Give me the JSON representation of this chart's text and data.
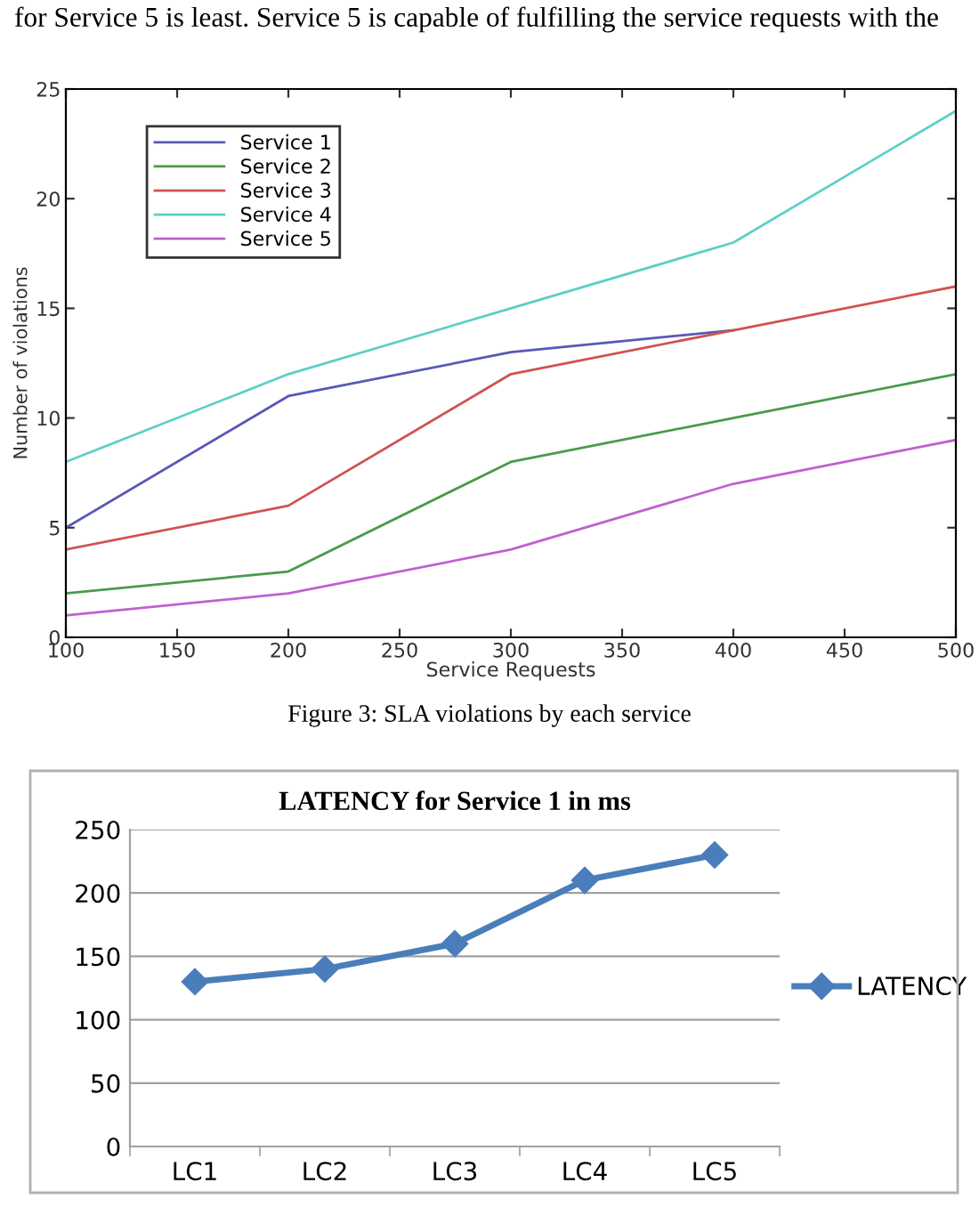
{
  "chart_data": [
    {
      "type": "line",
      "xlabel": "Service Requests",
      "ylabel": "Number of violations",
      "annotations": [
        "for Service 5 is least. Service 5 is capable of fulfilling the service requests with the",
        "Figure 3: SLA violations by each service"
      ],
      "x": [
        100,
        200,
        300,
        400,
        500
      ],
      "series": [
        {
          "name": "Service 1",
          "color": "#5858b8",
          "values": [
            5,
            11,
            13,
            14,
            null
          ]
        },
        {
          "name": "Service 2",
          "color": "#4a9a4a",
          "values": [
            2,
            3,
            8,
            10,
            12
          ]
        },
        {
          "name": "Service 3",
          "color": "#d05252",
          "values": [
            4,
            6,
            12,
            14,
            16
          ]
        },
        {
          "name": "Service 4",
          "color": "#5ccfc6",
          "values": [
            8,
            12,
            15,
            18,
            24
          ]
        },
        {
          "name": "Service 5",
          "color": "#c060d0",
          "values": [
            1,
            2,
            4,
            7,
            9
          ]
        }
      ],
      "xlim": [
        100,
        500
      ],
      "xticks": [
        100,
        150,
        200,
        250,
        300,
        350,
        400,
        450,
        500
      ],
      "ylim": [
        0,
        25
      ],
      "yticks": [
        0,
        5,
        10,
        15,
        20,
        25
      ],
      "grid": false,
      "legend": "top left",
      "line_style": "solid"
    },
    {
      "type": "line",
      "title": "LATENCY for Service 1 in ms",
      "categories": [
        "LC1",
        "LC2",
        "LC3",
        "LC4",
        "LC5"
      ],
      "series": [
        {
          "name": "LATENCY",
          "color": "#4a7ebb",
          "values": [
            130,
            140,
            160,
            210,
            230
          ]
        }
      ],
      "ylim": [
        0,
        250
      ],
      "yticks": [
        0,
        50,
        100,
        150,
        200,
        250
      ],
      "grid": "y",
      "legend": "right",
      "marker": "diamond",
      "line_style": "solid"
    }
  ]
}
